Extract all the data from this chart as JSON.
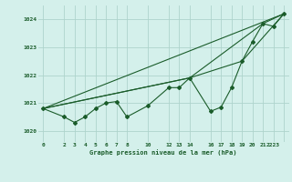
{
  "title": "Graphe pression niveau de la mer (hPa)",
  "background_color": "#d4f0eb",
  "grid_color": "#aed4cc",
  "line_color": "#1a5c2a",
  "ylim": [
    1019.6,
    1024.5
  ],
  "yticks": [
    1020,
    1021,
    1022,
    1023,
    1024
  ],
  "series1_x": [
    0,
    2,
    3,
    4,
    5,
    6,
    7,
    8,
    10,
    12,
    13,
    14,
    16,
    17,
    18,
    19,
    20,
    21,
    22,
    23
  ],
  "series1_y": [
    1020.8,
    1020.5,
    1020.3,
    1020.5,
    1020.8,
    1021.0,
    1021.05,
    1020.5,
    1020.9,
    1021.55,
    1021.55,
    1021.9,
    1020.7,
    1020.85,
    1021.55,
    1022.5,
    1023.2,
    1023.85,
    1023.75,
    1024.2
  ],
  "series2_x": [
    0,
    23
  ],
  "series2_y": [
    1020.8,
    1024.2
  ],
  "series3_x": [
    0,
    14,
    21,
    23
  ],
  "series3_y": [
    1020.8,
    1021.9,
    1023.85,
    1024.2
  ],
  "series4_x": [
    0,
    14,
    19,
    23
  ],
  "series4_y": [
    1020.8,
    1021.9,
    1022.5,
    1024.2
  ],
  "x_tick_positions": [
    0,
    2,
    3,
    4,
    5,
    6,
    7,
    8,
    10,
    12,
    13,
    14,
    16,
    17,
    18,
    19,
    20,
    21,
    22,
    23
  ],
  "x_tick_labels": [
    "0",
    "2",
    "3",
    "4",
    "5",
    "6",
    "7",
    "8",
    "10",
    "12",
    "13",
    "14",
    "16",
    "17",
    "18",
    "19",
    "20",
    "21",
    "2223",
    ""
  ],
  "xlim": [
    -0.5,
    23.5
  ],
  "figsize": [
    3.2,
    2.0
  ],
  "dpi": 100
}
